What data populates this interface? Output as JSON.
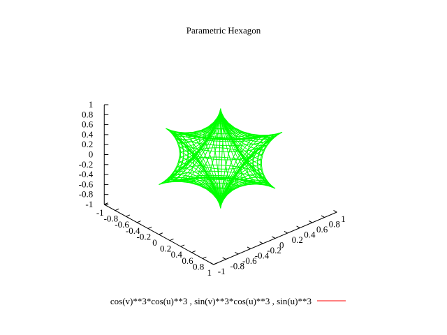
{
  "chart_data": {
    "type": "surface3d",
    "title": "Parametric Hexagon",
    "xlabel": "",
    "ylabel": "",
    "zlabel": "",
    "legend": {
      "label": "cos(v)**3*cos(u)**3 , sin(v)**3*cos(u)**3 , sin(u)**3",
      "position": "bottom-center",
      "line_color": "#ff0000"
    },
    "surface": {
      "x_expr": "cos(v)**3*cos(u)**3",
      "y_expr": "sin(v)**3*cos(u)**3",
      "z_expr": "sin(u)**3",
      "u_range": [
        -1.5708,
        1.5708
      ],
      "v_range": [
        0,
        6.2832
      ],
      "color": "#00ff00"
    },
    "xlim": [
      -1,
      1
    ],
    "ylim": [
      -1,
      1
    ],
    "zlim": [
      -1,
      1
    ],
    "z_ticks": [
      "1",
      "0.8",
      "0.6",
      "0.4",
      "0.2",
      "0",
      "-0.2",
      "-0.4",
      "-0.6",
      "-0.8",
      "-1"
    ],
    "x_ticks": [
      "-1",
      "-0.8",
      "-0.6",
      "-0.4",
      "-0.2",
      "0",
      "0.2",
      "0.4",
      "0.6",
      "0.8",
      "1"
    ],
    "y_ticks": [
      "-1",
      "-0.8",
      "-0.6",
      "-0.4",
      "-0.2",
      "0",
      "0.2",
      "0.4",
      "0.6",
      "0.8",
      "1"
    ],
    "grid": false
  }
}
